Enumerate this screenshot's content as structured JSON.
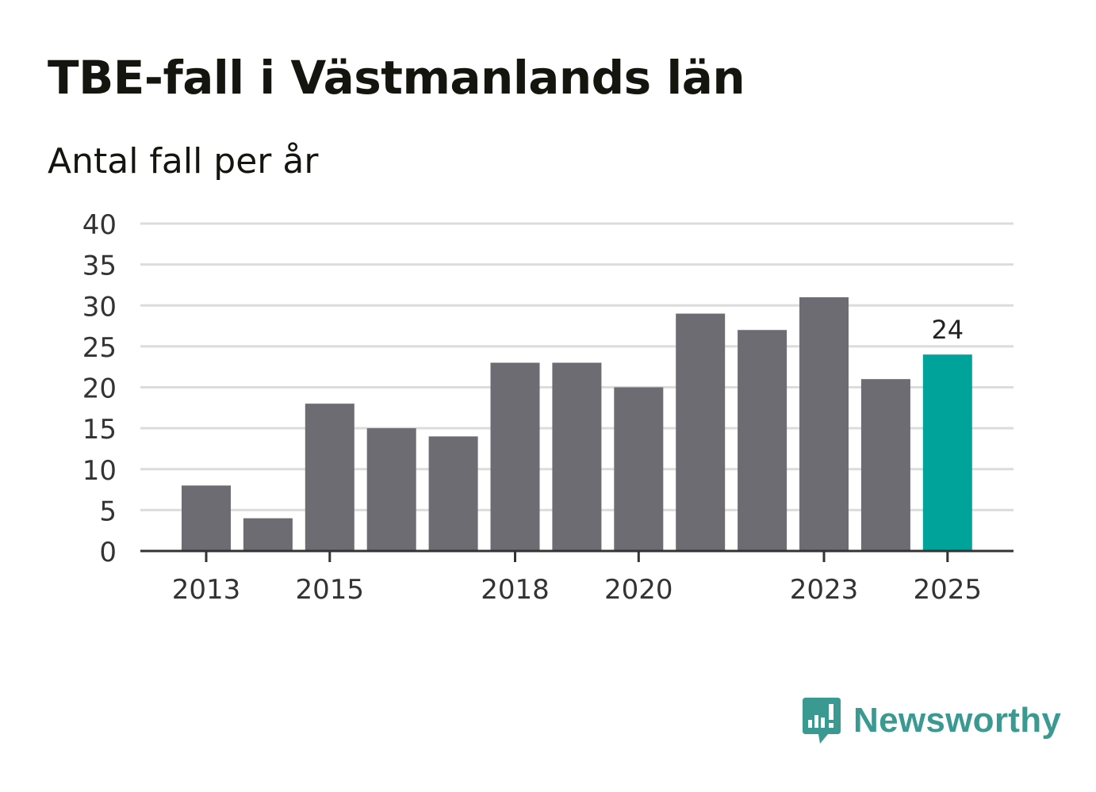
{
  "header": {
    "title": "TBE-fall i Västmanlands län",
    "subtitle": "Antal fall per år"
  },
  "brand": {
    "name": "Newsworthy",
    "icon": "newsworthy-logo-icon",
    "color": "#3a9a92"
  },
  "colors": {
    "bar": "#6d6c72",
    "highlight": "#00a39a",
    "grid": "#dcdcdc",
    "axis": "#333333",
    "text": "#333333"
  },
  "chart_data": {
    "type": "bar",
    "title": "TBE-fall i Västmanlands län",
    "subtitle": "Antal fall per år",
    "xlabel": "",
    "ylabel": "",
    "categories": [
      2013,
      2014,
      2015,
      2016,
      2017,
      2018,
      2019,
      2020,
      2021,
      2022,
      2023,
      2024,
      2025
    ],
    "values": [
      8,
      4,
      18,
      15,
      14,
      23,
      23,
      20,
      29,
      27,
      31,
      21,
      24
    ],
    "x_tick_labels": [
      "2013",
      "2015",
      "2018",
      "2020",
      "2023",
      "2025"
    ],
    "y_ticks": [
      0,
      5,
      10,
      15,
      20,
      25,
      30,
      35,
      40
    ],
    "ylim": [
      0,
      40
    ],
    "highlight_category": 2025,
    "data_labels": [
      {
        "category": 2025,
        "label": "24"
      }
    ],
    "grid": true,
    "legend": "none"
  }
}
